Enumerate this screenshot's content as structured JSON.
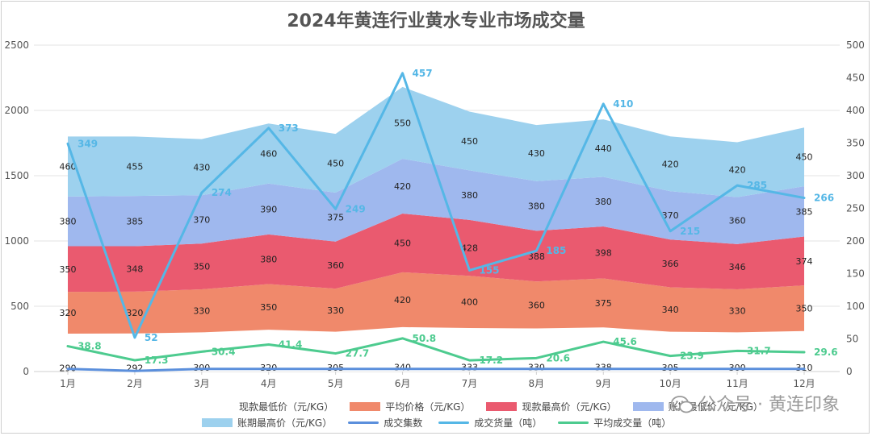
{
  "chart_data": {
    "type": "area",
    "title": "2024年黄连行业黄水专业市场成交量",
    "categories": [
      "1月",
      "2月",
      "3月",
      "4月",
      "5月",
      "6月",
      "7月",
      "8月",
      "9月",
      "10月",
      "11月",
      "12月"
    ],
    "y_left": {
      "min": 0,
      "max": 2500,
      "ticks": [
        0,
        500,
        1000,
        1500,
        2000,
        2500
      ]
    },
    "y_right": {
      "min": 0,
      "max": 500,
      "ticks": [
        0,
        50,
        100,
        150,
        200,
        250,
        300,
        350,
        400,
        450,
        500
      ]
    },
    "grid": true,
    "legend_position": "bottom",
    "stacked_series": [
      {
        "name": "现款最低价（元/KG）",
        "color": "#ffffff",
        "values": [
          290,
          292,
          300,
          320,
          305,
          340,
          333,
          330,
          338,
          305,
          300,
          310
        ]
      },
      {
        "name": "平均价格（元/KG）",
        "color": "#f0896b",
        "values": [
          320,
          320,
          330,
          350,
          330,
          420,
          400,
          360,
          375,
          340,
          330,
          350
        ]
      },
      {
        "name": "现款最高价（元/KG）",
        "color": "#ea5a6f",
        "values": [
          350,
          348,
          350,
          380,
          360,
          450,
          428,
          388,
          398,
          366,
          346,
          374
        ]
      },
      {
        "name": "账期最低价（元/KG）",
        "color": "#9fb8ee",
        "values": [
          380,
          385,
          370,
          390,
          375,
          420,
          380,
          380,
          380,
          370,
          360,
          385
        ]
      },
      {
        "name": "账期最高价（元/KG）",
        "color": "#9dd1ee",
        "values": [
          460,
          455,
          430,
          460,
          450,
          550,
          450,
          430,
          440,
          420,
          420,
          450
        ]
      }
    ],
    "line_series": [
      {
        "name": "成交集数",
        "color": "#5b8fdc",
        "axis": "right",
        "values": [
          4,
          1,
          4,
          4,
          4,
          4,
          4,
          4,
          4,
          4,
          4,
          4
        ],
        "labels": []
      },
      {
        "name": "成交货量（吨）",
        "color": "#55b7e6",
        "axis": "right",
        "values": [
          349,
          52,
          274,
          373,
          249,
          457,
          155,
          185,
          410,
          215,
          285,
          266
        ],
        "labels": [
          "349",
          "52",
          "274",
          "373",
          "249",
          "457",
          "155",
          "185",
          "410",
          "215",
          "285",
          "266"
        ]
      },
      {
        "name": "平均成交量（吨）",
        "color": "#4dcb8f",
        "axis": "right",
        "values": [
          38.8,
          17.3,
          30.4,
          41.4,
          27.7,
          50.8,
          17.2,
          20.6,
          45.6,
          23.9,
          31.7,
          29.6
        ],
        "labels": [
          "38.8",
          "17.3",
          "30.4",
          "41.4",
          "27.7",
          "50.8",
          "17.2",
          "20.6",
          "45.6",
          "23.9",
          "31.7",
          "29.6"
        ]
      }
    ]
  },
  "watermark": {
    "text": "公众号 · 黄连印象"
  }
}
